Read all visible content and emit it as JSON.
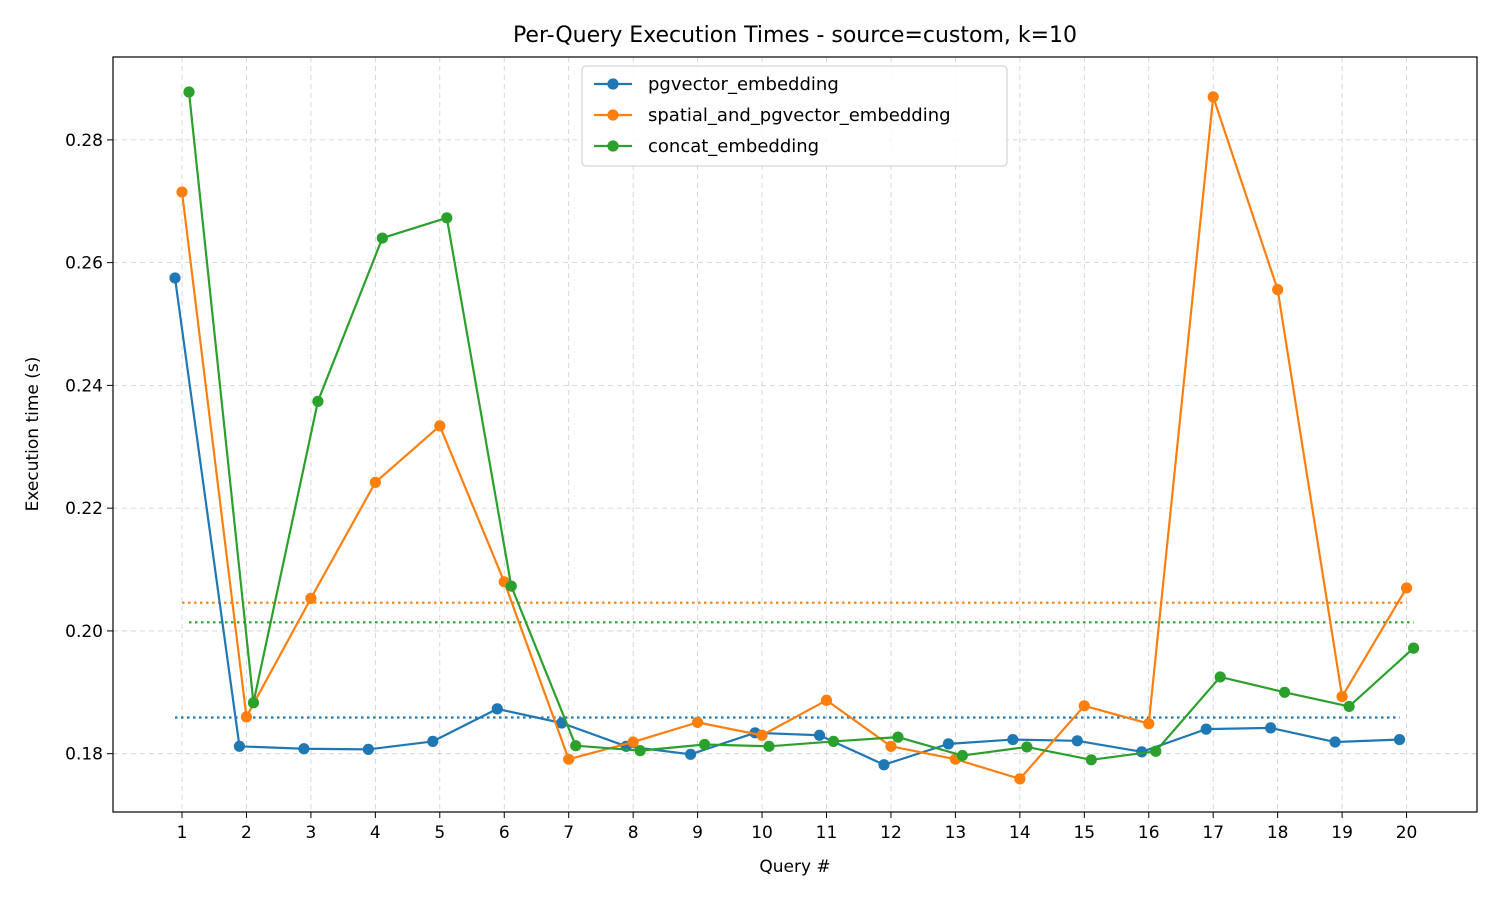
{
  "chart_data": {
    "type": "line",
    "title": "Per-Query Execution Times - source=custom, k=10",
    "xlabel": "Query #",
    "ylabel": "Execution time (s)",
    "x": [
      1,
      2,
      3,
      4,
      5,
      6,
      7,
      8,
      9,
      10,
      11,
      12,
      13,
      14,
      15,
      16,
      17,
      18,
      19,
      20
    ],
    "xticks": [
      "1",
      "2",
      "3",
      "4",
      "5",
      "6",
      "7",
      "8",
      "9",
      "10",
      "11",
      "12",
      "13",
      "14",
      "15",
      "16",
      "17",
      "18",
      "19",
      "20"
    ],
    "yticks": [
      "0.18",
      "0.20",
      "0.22",
      "0.24",
      "0.26",
      "0.28"
    ],
    "ylim": [
      0.1705,
      0.2935
    ],
    "grid": true,
    "legend_position": "top-center",
    "series": [
      {
        "name": "pgvector_embedding",
        "color": "#1f77b4",
        "values": [
          0.2575,
          0.1812,
          0.1808,
          0.1807,
          0.182,
          0.1873,
          0.185,
          0.1812,
          0.1799,
          0.1834,
          0.183,
          0.1782,
          0.1816,
          0.1823,
          0.1821,
          0.1803,
          0.184,
          0.1842,
          0.1819,
          0.1823
        ],
        "mean": 0.1859
      },
      {
        "name": "spatial_and_pgvector_embedding",
        "color": "#ff7f0e",
        "values": [
          0.2715,
          0.186,
          0.2053,
          0.2242,
          0.2334,
          0.208,
          0.1791,
          0.1819,
          0.1851,
          0.183,
          0.1887,
          0.1812,
          0.1791,
          0.1759,
          0.1878,
          0.1849,
          0.287,
          0.2556,
          0.1893,
          0.207
        ],
        "mean": 0.2046
      },
      {
        "name": "concat_embedding",
        "color": "#2ca02c",
        "values": [
          0.2878,
          0.1883,
          0.2374,
          0.264,
          0.2673,
          0.2073,
          0.1813,
          0.1805,
          0.1815,
          0.1812,
          0.182,
          0.1827,
          0.1797,
          0.1811,
          0.179,
          0.1804,
          0.1925,
          0.19,
          0.1877,
          0.1972
        ],
        "mean": 0.2014
      }
    ]
  }
}
